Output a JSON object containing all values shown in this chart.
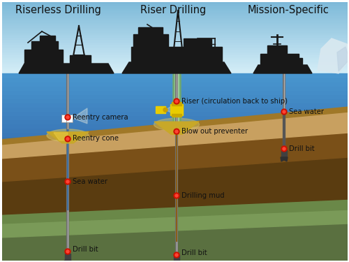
{
  "title_left": "Riserless Drilling",
  "title_center": "Riser Drilling",
  "title_right": "Mission-Specific",
  "sky_top": "#d4eef8",
  "sky_bottom": "#8ec8e8",
  "ocean_top": "#2060a0",
  "ocean_mid": "#3878b8",
  "ocean_bottom": "#4a90c8",
  "layer_tan": "#c8a060",
  "layer_brown": "#8a6020",
  "layer_dark": "#5a3c10",
  "layer_green": "#7a9a58",
  "layer_darkgreen": "#556b38",
  "labels": {
    "reentry_camera": "Reentry camera",
    "reentry_cone": "Reentry cone",
    "sea_water_left": "Sea water",
    "drill_bit_left": "Drill bit",
    "riser": "Riser (circulation back to ship)",
    "blow_out": "Blow out preventer",
    "drilling_mud": "Drilling mud",
    "drill_bit_center": "Drill bit",
    "sea_water_right": "Sea water",
    "drill_bit_right": "Drill bit"
  },
  "dot_color": "#cc1100",
  "pipe_color": "#909090",
  "riser_outer": "#88cc88",
  "riser_inner": "#b8e8b8"
}
